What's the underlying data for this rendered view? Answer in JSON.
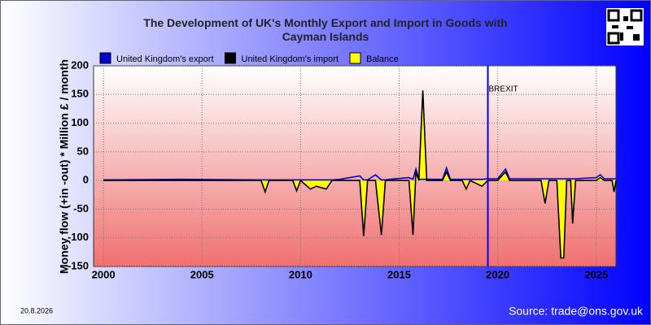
{
  "chart_data": {
    "type": "line",
    "title": "The Development of UK's Monthly Export and Import in Goods with Cayman Islands",
    "y_label": "Money flow (+in -out) * Million £ / month",
    "date": "20.8.2026",
    "source": "Source: trade@ons.gov.uk",
    "annotation": {
      "text": "BREXIT",
      "x": 2019.5,
      "color": "#0000ff"
    },
    "x": [
      2000,
      2004,
      2008,
      2008.2,
      2008.4,
      2009.6,
      2009.8,
      2010,
      2010.5,
      2010.8,
      2011.3,
      2011.6,
      2012,
      2013,
      2013.2,
      2013.4,
      2013.8,
      2014.1,
      2014.3,
      2014.5,
      2015.5,
      2015.7,
      2015.85,
      2016,
      2016.2,
      2016.4,
      2017.2,
      2017.4,
      2017.6,
      2018.2,
      2018.4,
      2018.6,
      2019.2,
      2019.5,
      2020,
      2020.4,
      2020.6,
      2022.2,
      2022.4,
      2022.6,
      2023,
      2023.2,
      2023.35,
      2023.5,
      2023.7,
      2023.8,
      2023.95,
      2025,
      2025.2,
      2025.4,
      2025.8,
      2025.9,
      2026
    ],
    "series": [
      {
        "name": "Balance",
        "color": "#ffff00",
        "kind": "area",
        "values": [
          0,
          0,
          0,
          -20,
          0,
          0,
          -18,
          0,
          -15,
          -10,
          -15,
          0,
          0,
          0,
          -97,
          0,
          0,
          -95,
          0,
          0,
          0,
          -95,
          20,
          0,
          157,
          0,
          0,
          22,
          0,
          0,
          -15,
          0,
          -10,
          0,
          0,
          20,
          0,
          0,
          -40,
          0,
          0,
          -135,
          -135,
          0,
          0,
          -75,
          0,
          0,
          10,
          0,
          0,
          -20,
          0
        ]
      },
      {
        "name": "United Kingdom's export",
        "color": "#0000cc",
        "kind": "line",
        "values": [
          1,
          2,
          1,
          1,
          1,
          1,
          1,
          1,
          1,
          1,
          1,
          1,
          2,
          8,
          1,
          1,
          10,
          1,
          1,
          2,
          5,
          2,
          20,
          2,
          2,
          2,
          2,
          22,
          2,
          2,
          2,
          2,
          2,
          3,
          3,
          20,
          3,
          3,
          3,
          3,
          3,
          3,
          3,
          3,
          3,
          3,
          3,
          5,
          10,
          3,
          3,
          3,
          3
        ]
      },
      {
        "name": "United Kingdom's import",
        "color": "#000000",
        "kind": "line",
        "values": [
          0,
          0,
          0,
          -20,
          0,
          0,
          -18,
          0,
          -15,
          -10,
          -15,
          0,
          0,
          0,
          -97,
          0,
          0,
          -95,
          0,
          0,
          0,
          -95,
          15,
          0,
          157,
          0,
          0,
          15,
          0,
          0,
          -15,
          0,
          -10,
          0,
          0,
          15,
          0,
          0,
          -40,
          0,
          0,
          -135,
          -135,
          0,
          0,
          -75,
          0,
          0,
          5,
          0,
          0,
          -20,
          0
        ]
      }
    ],
    "legend_order": [
      1,
      2,
      0
    ],
    "xlim": [
      1999.5,
      2026
    ],
    "xticks": [
      2000,
      2005,
      2010,
      2015,
      2020,
      2025
    ],
    "ylim": [
      -150,
      200
    ],
    "yticks": [
      -150,
      -100,
      -50,
      0,
      50,
      100,
      150,
      200
    ],
    "grid": true
  }
}
